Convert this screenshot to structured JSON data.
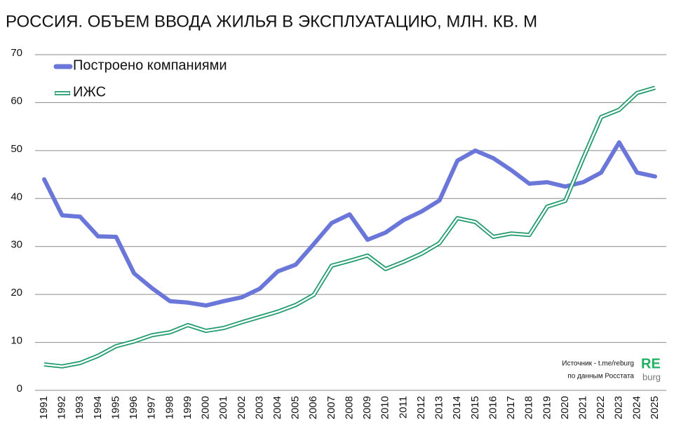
{
  "chart_data": {
    "type": "line",
    "title": "РОССИЯ. ОБЪЕМ ВВОДА  ЖИЛЬЯ В ЭКСПЛУАТАЦИЮ, МЛН. КВ. М",
    "categories": [
      "1991",
      "1992",
      "1993",
      "1994",
      "1995",
      "1996",
      "1997",
      "1998",
      "1999",
      "2000",
      "2001",
      "2002",
      "2003",
      "2004",
      "2005",
      "2006",
      "2007",
      "2008",
      "2009",
      "2010",
      "2011",
      "2012",
      "2013",
      "2014",
      "2015",
      "2016",
      "2017",
      "2018",
      "2019",
      "2020",
      "2021",
      "2022",
      "2023",
      "2024",
      "2025"
    ],
    "series": [
      {
        "name": "Построено компаниями",
        "color": "#6a77d9",
        "style": "thick",
        "values": [
          44.0,
          36.5,
          36.2,
          32.1,
          32.0,
          24.4,
          21.3,
          18.6,
          18.3,
          17.7,
          18.6,
          19.4,
          21.2,
          24.8,
          26.2,
          30.5,
          34.9,
          36.7,
          31.4,
          32.9,
          35.5,
          37.3,
          39.6,
          47.9,
          50.0,
          48.4,
          45.9,
          43.1,
          43.4,
          42.5,
          43.4,
          45.4,
          51.7,
          45.4,
          44.6
        ]
      },
      {
        "name": "ИЖС",
        "color": "#1f9a6a",
        "style": "double",
        "values": [
          5.4,
          5.0,
          5.7,
          7.2,
          9.2,
          10.2,
          11.5,
          12.1,
          13.6,
          12.4,
          13.0,
          14.2,
          15.3,
          16.4,
          17.8,
          19.9,
          26.0,
          27.0,
          28.1,
          25.3,
          26.8,
          28.5,
          30.7,
          35.9,
          35.1,
          32.0,
          32.7,
          32.4,
          38.3,
          39.5,
          48.4,
          57.0,
          58.5,
          62.0,
          63.1
        ]
      }
    ],
    "ylim": [
      0,
      70
    ],
    "yticks": [
      0,
      10,
      20,
      30,
      40,
      50,
      60,
      70
    ],
    "grid": true,
    "legend": "top-left",
    "source": [
      "Источник - t.me/reburg",
      "по данным Росстата"
    ],
    "logo": [
      "RE",
      "burg"
    ]
  }
}
